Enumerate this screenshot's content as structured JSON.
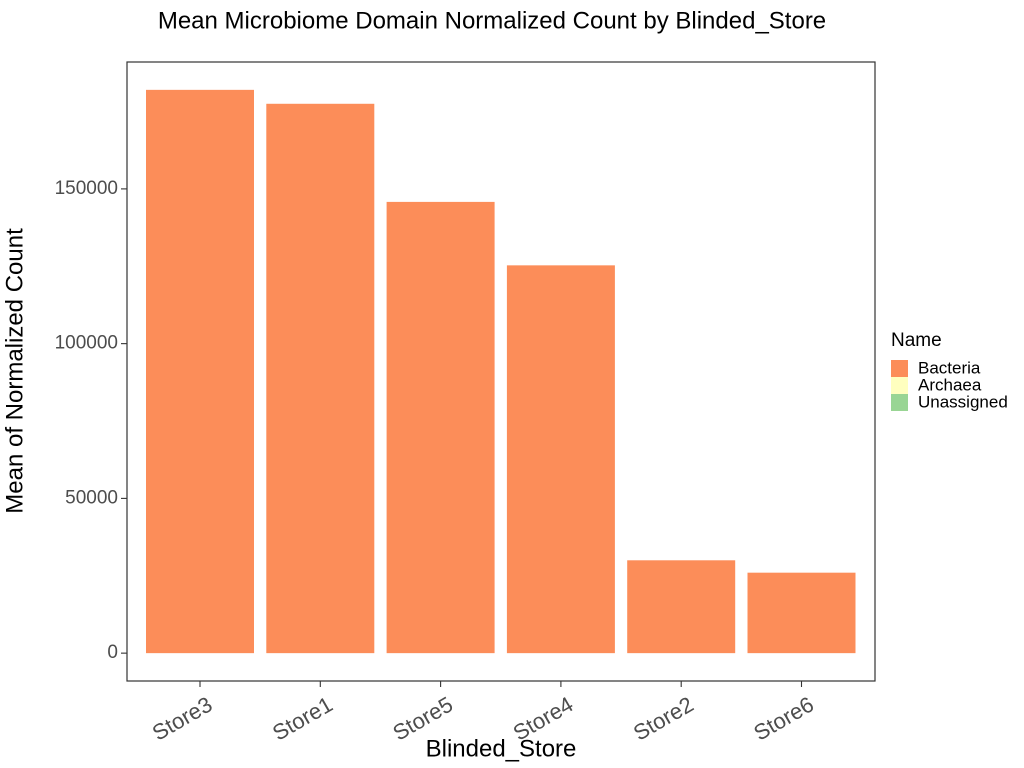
{
  "chart_data": {
    "type": "bar",
    "title": "Mean Microbiome Domain Normalized Count by Blinded_Store",
    "xlabel": "Blinded_Store",
    "ylabel": "Mean of Normalized Count",
    "categories": [
      "Store3",
      "Store1",
      "Store5",
      "Store4",
      "Store2",
      "Store6"
    ],
    "series": [
      {
        "name": "Bacteria",
        "color": "#fc8d59",
        "values": [
          182000,
          177500,
          145800,
          125300,
          30000,
          26000
        ]
      },
      {
        "name": "Archaea",
        "color": "#ffffbf",
        "values": [
          0,
          0,
          0,
          0,
          0,
          0
        ]
      },
      {
        "name": "Unassigned",
        "color": "#99d594",
        "values": [
          0,
          0,
          0,
          0,
          0,
          0
        ]
      }
    ],
    "stacked": true,
    "ylim": [
      -9000,
      191000
    ],
    "yticks": [
      0,
      50000,
      100000,
      150000
    ],
    "ytick_labels": [
      "0",
      "50000",
      "100000",
      "150000"
    ],
    "grid": false,
    "legend": {
      "title": "Name",
      "placement": "right",
      "entries": [
        "Bacteria",
        "Archaea",
        "Unassigned"
      ]
    }
  }
}
